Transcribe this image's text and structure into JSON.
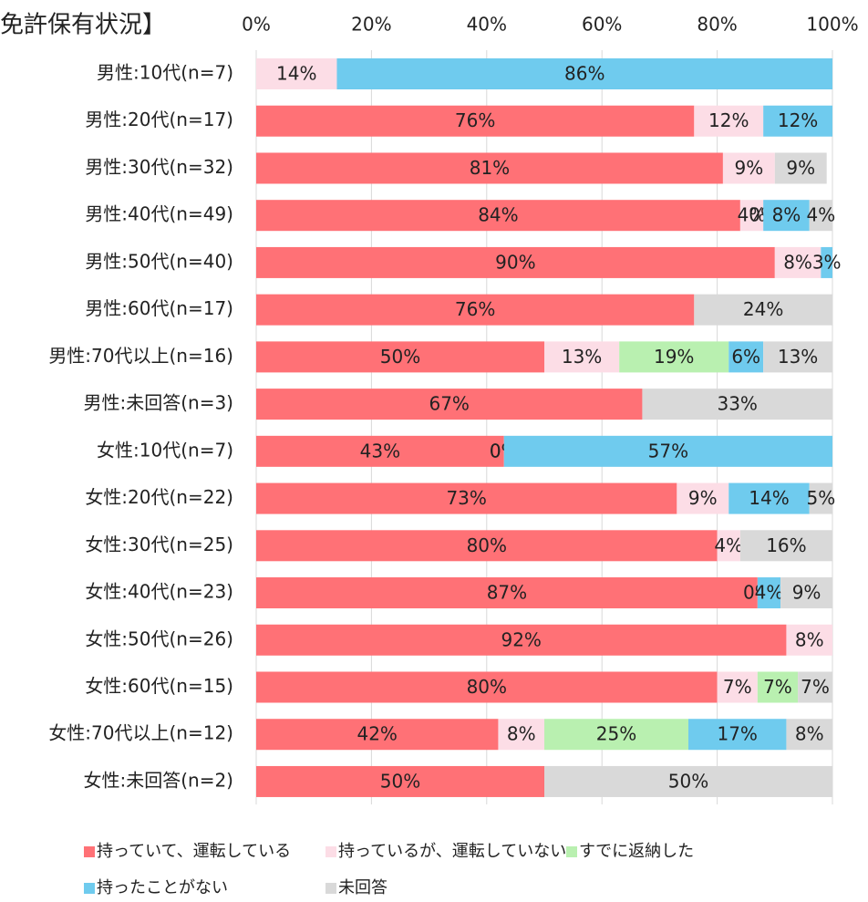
{
  "chart_data": {
    "type": "stacked_bar_horizontal",
    "title": "免許保有状況】",
    "categories": [
      "男性:10代(n=7)",
      "男性:20代(n=17)",
      "男性:30代(n=32)",
      "男性:40代(n=49)",
      "男性:50代(n=40)",
      "男性:60代(n=17)",
      "男性:70代以上(n=16)",
      "男性:未回答(n=3)",
      "女性:10代(n=7)",
      "女性:20代(n=22)",
      "女性:30代(n=25)",
      "女性:40代(n=23)",
      "女性:50代(n=26)",
      "女性:60代(n=15)",
      "女性:70代以上(n=12)",
      "女性:未回答(n=2)"
    ],
    "series": [
      {
        "name": "持っていて、運転している",
        "color": "#ff7176",
        "values": [
          null,
          76,
          81,
          84,
          90,
          76,
          50,
          67,
          43,
          73,
          80,
          87,
          92,
          80,
          42,
          50
        ],
        "value_labels": [
          null,
          "76%",
          "81%",
          "84%",
          "90%",
          "76%",
          "50%",
          "67%",
          "43%",
          "73%",
          "80%",
          "87%",
          "92%",
          "80%",
          "42%",
          "50%"
        ]
      },
      {
        "name": "持っているが、運転していない",
        "color": "#fcdde6",
        "values": [
          14,
          12,
          9,
          4,
          8,
          null,
          13,
          null,
          0,
          9,
          4,
          0,
          8,
          7,
          8,
          null
        ],
        "value_labels": [
          "14%",
          "12%",
          "9%",
          "4%",
          "8%",
          null,
          "13%",
          null,
          "0%",
          "9%",
          "4%",
          "0%",
          "8%",
          "7%",
          "8%",
          null
        ]
      },
      {
        "name": "すでに返納した",
        "color": "#b9f0b0",
        "values": [
          null,
          null,
          null,
          0,
          null,
          null,
          19,
          null,
          0,
          null,
          null,
          null,
          null,
          7,
          25,
          null
        ],
        "value_labels": [
          null,
          null,
          null,
          "0%",
          null,
          null,
          "19%",
          null,
          "0%",
          null,
          null,
          null,
          null,
          "7%",
          "25%",
          null
        ]
      },
      {
        "name": "持ったことがない",
        "color": "#6fcbee",
        "values": [
          86,
          12,
          null,
          8,
          3,
          null,
          6,
          null,
          57,
          14,
          null,
          4,
          null,
          null,
          17,
          null
        ],
        "value_labels": [
          "86%",
          "12%",
          null,
          "8%",
          "3%",
          null,
          "6%",
          null,
          "57%",
          "14%",
          null,
          "4%",
          null,
          null,
          "17%",
          null
        ]
      },
      {
        "name": "未回答",
        "color": "#d9d9d9",
        "values": [
          null,
          null,
          9,
          4,
          null,
          24,
          13,
          33,
          null,
          5,
          16,
          9,
          null,
          7,
          8,
          50
        ],
        "value_labels": [
          null,
          null,
          "9%",
          "4%",
          null,
          "24%",
          "13%",
          "33%",
          null,
          "5%",
          "16%",
          "9%",
          null,
          "7%",
          "8%",
          "50%"
        ]
      }
    ],
    "xlim": [
      0,
      100
    ],
    "xticks": [
      {
        "value": 0,
        "label": "0%"
      },
      {
        "value": 20,
        "label": "20%"
      },
      {
        "value": 40,
        "label": "40%"
      },
      {
        "value": 60,
        "label": "60%"
      },
      {
        "value": 80,
        "label": "80%"
      },
      {
        "value": 100,
        "label": "100%"
      }
    ],
    "grid": true
  }
}
